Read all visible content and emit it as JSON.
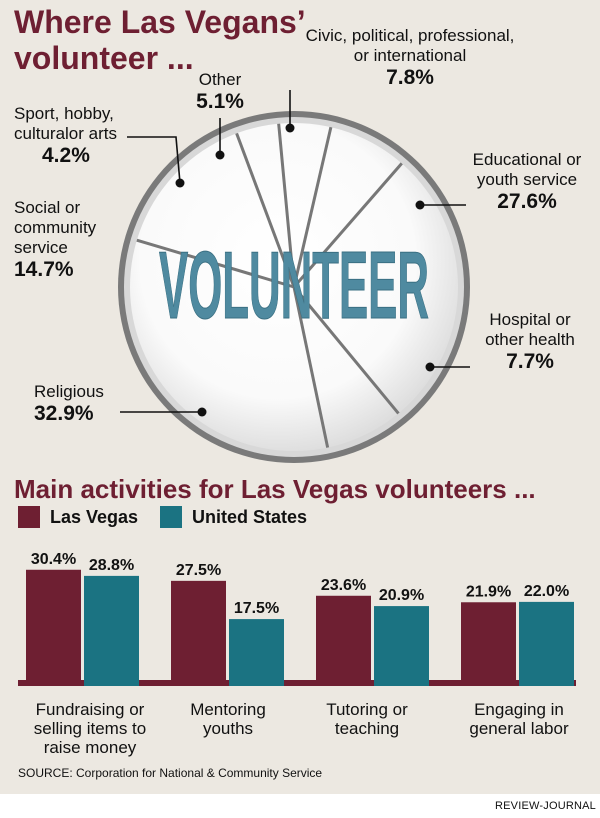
{
  "pie_title": "Where Las Vegans’ volunteer ...",
  "bar_title": "Main activities for Las Vegas volunteers ...",
  "center_word": "VOLUNTEER",
  "source": "SOURCE: Corporation for National & Community Service",
  "credit": "REVIEW-JOURNAL",
  "colors": {
    "las_vegas": "#6e1f32",
    "united_states": "#1b7382",
    "title": "#6e1f32",
    "background": "#ece8e1"
  },
  "chart_data": [
    {
      "type": "pie",
      "title": "Where Las Vegans’ volunteer ...",
      "slices": [
        {
          "label": "Civic, political, professional, or international",
          "value": 7.8,
          "display": "7.8%"
        },
        {
          "label": "Educational or youth service",
          "value": 27.6,
          "display": "27.6%"
        },
        {
          "label": "Hospital or other health",
          "value": 7.7,
          "display": "7.7%"
        },
        {
          "label": "Religious",
          "value": 32.9,
          "display": "32.9%"
        },
        {
          "label": "Social or community service",
          "value": 14.7,
          "display": "14.7%"
        },
        {
          "label": "Sport, hobby, culturalor arts",
          "value": 4.2,
          "display": "4.2%"
        },
        {
          "label": "Other",
          "value": 5.1,
          "display": "5.1%"
        }
      ]
    },
    {
      "type": "bar",
      "title": "Main activities for Las Vegas volunteers ...",
      "categories": [
        "Fundraising or selling items to raise money",
        "Mentoring youths",
        "Tutoring or teaching",
        "Engaging in general labor"
      ],
      "series": [
        {
          "name": "Las Vegas",
          "values": [
            30.4,
            27.5,
            23.6,
            21.9
          ],
          "labels": [
            "30.4%",
            "27.5%",
            "23.6%",
            "21.9%"
          ]
        },
        {
          "name": "United States",
          "values": [
            28.8,
            17.5,
            20.9,
            22.0
          ],
          "labels": [
            "28.8%",
            "17.5%",
            "20.9%",
            "22.0%"
          ]
        }
      ],
      "ylim": [
        0,
        34
      ],
      "grid": false,
      "legend": "top-left"
    }
  ],
  "pie_labels": {
    "civic": {
      "text": [
        "Civic, political, professional,",
        "or international"
      ],
      "pct": "7.8%"
    },
    "educational": {
      "text": [
        "Educational or",
        "youth service"
      ],
      "pct": "27.6%"
    },
    "hospital": {
      "text": [
        "Hospital or",
        "other health"
      ],
      "pct": "7.7%"
    },
    "religious": {
      "text": [
        "Religious"
      ],
      "pct": "32.9%"
    },
    "social": {
      "text": [
        "Social or",
        "community",
        "service"
      ],
      "pct": "14.7%"
    },
    "sport": {
      "text": [
        "Sport, hobby,",
        "culturalor arts"
      ],
      "pct": "4.2%"
    },
    "other": {
      "text": [
        "Other"
      ],
      "pct": "5.1%"
    }
  },
  "x_labels": [
    [
      "Fundraising or",
      "selling items to",
      "raise money"
    ],
    [
      "Mentoring",
      "youths"
    ],
    [
      "Tutoring or",
      "teaching"
    ],
    [
      "Engaging in",
      "general labor"
    ]
  ]
}
